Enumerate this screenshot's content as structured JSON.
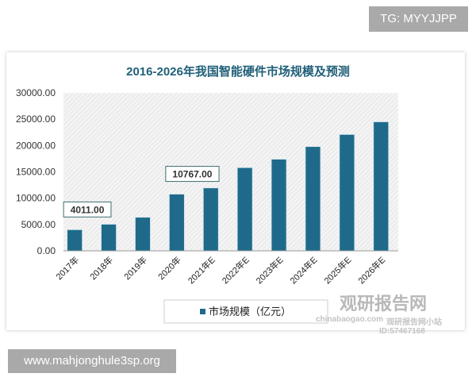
{
  "overlay": {
    "top_right": "TG: MYYJJPP",
    "bottom_left": "www.mahjonghule3sp.org"
  },
  "watermark": {
    "brand": "观研报告网",
    "sub": "chinabaogao.com",
    "note": "观研报告网小站",
    "id": "ID:57467168"
  },
  "chart_data": {
    "type": "bar",
    "title": "2016-2026年我国智能硬件市场规模及预测",
    "categories": [
      "2017年",
      "2018年",
      "2019年",
      "2020年",
      "2021年E",
      "2022年E",
      "2023年E",
      "2024年E",
      "2025年E",
      "2026年E"
    ],
    "series": [
      {
        "name": "市场规模（亿元）",
        "values": [
          4011,
          5050,
          6370,
          10767,
          11950,
          15800,
          17400,
          19800,
          22100,
          24500
        ]
      }
    ],
    "data_labels": [
      {
        "category": "2017年",
        "text": "4011.00"
      },
      {
        "category": "2020年",
        "text": "10767.00"
      }
    ],
    "yticks": [
      "0.00",
      "5000.00",
      "10000.00",
      "15000.00",
      "20000.00",
      "25000.00",
      "30000.00"
    ],
    "ylim": [
      0,
      30000
    ],
    "grid": false,
    "legend": "bottom",
    "colors": {
      "bar": "#1f6a8a",
      "title": "#1f5f78",
      "plot_bg": "hatched-grey"
    }
  }
}
